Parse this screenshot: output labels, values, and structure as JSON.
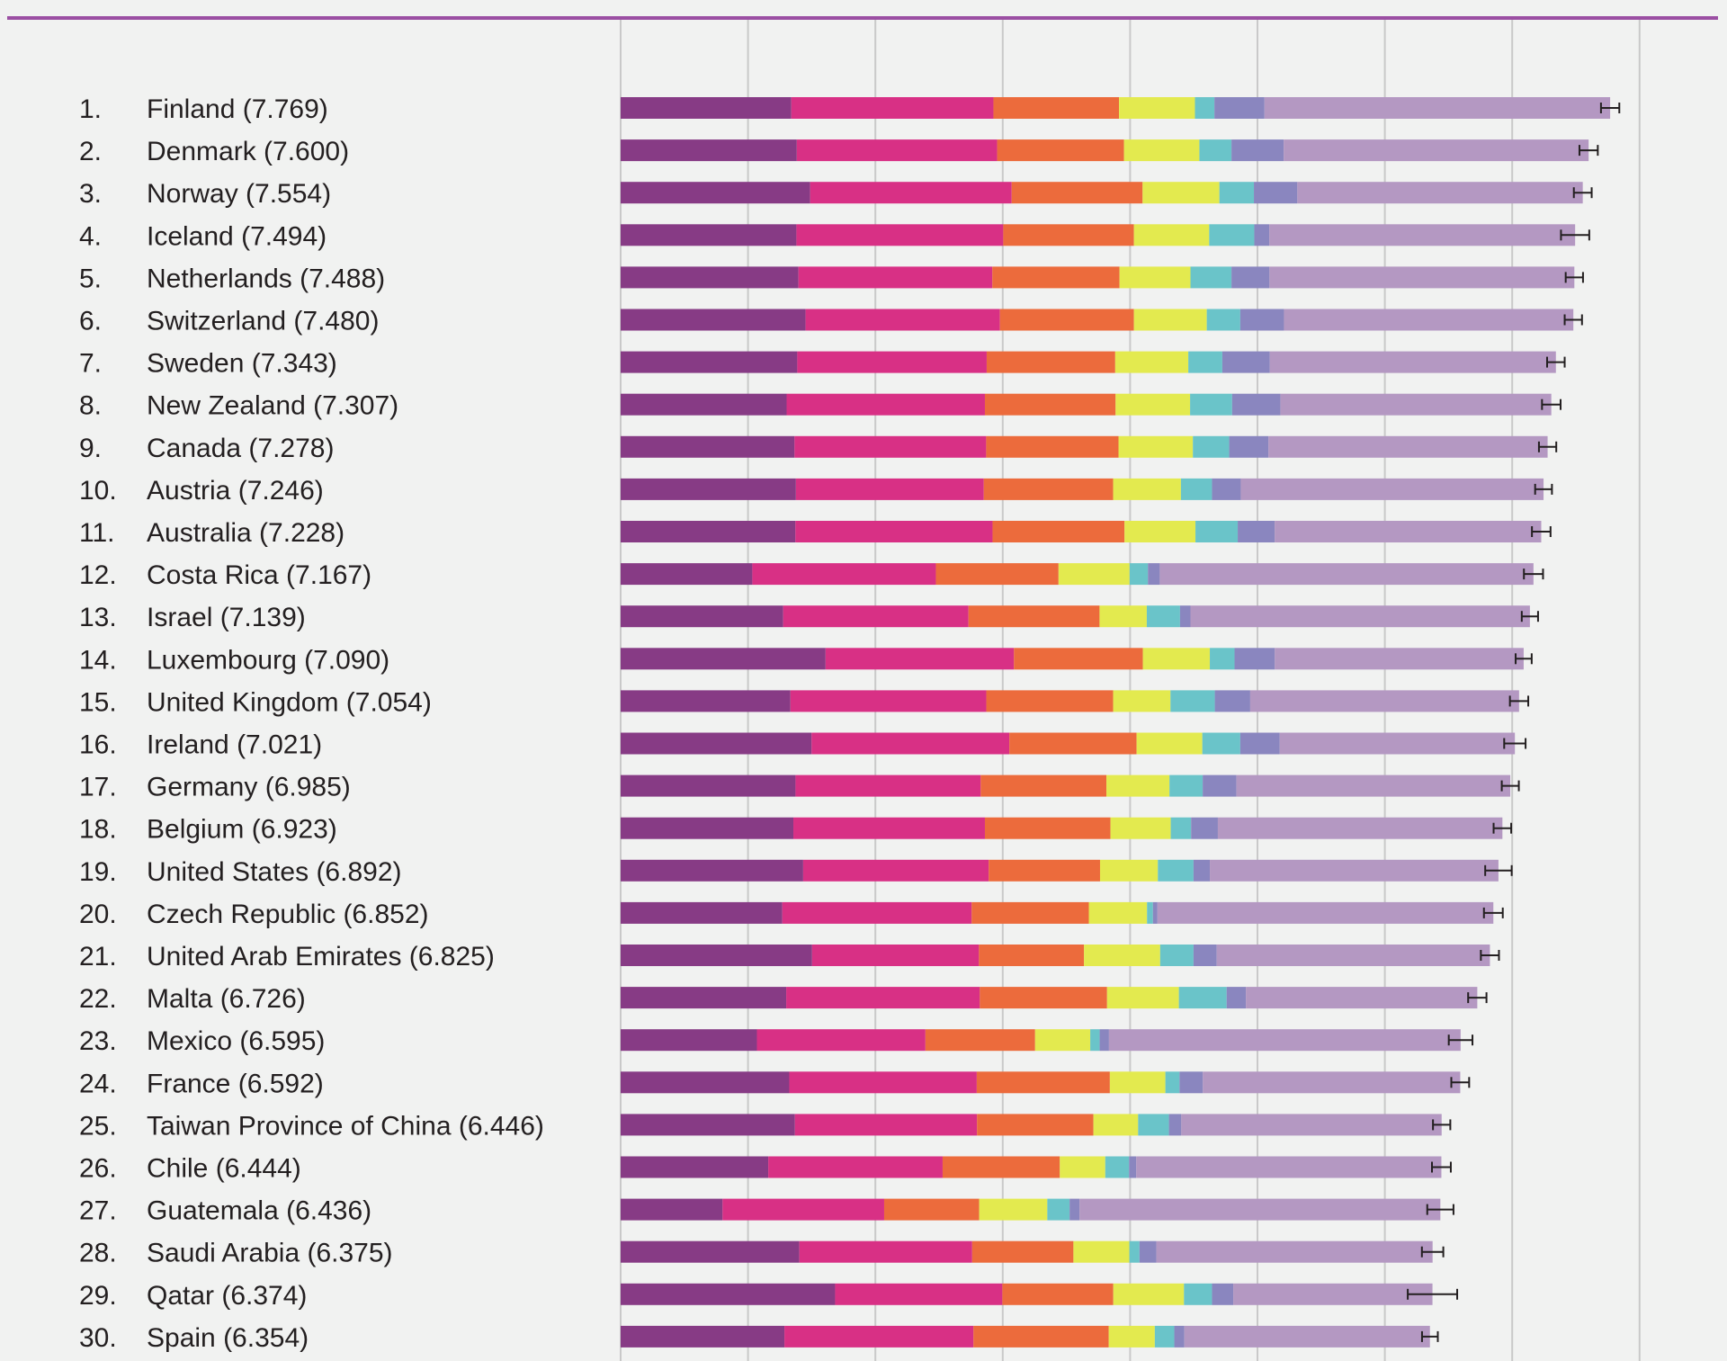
{
  "colors": {
    "background": "#f1f2f1",
    "top_rule": "#9b4fa3",
    "gridline": "#c9c9c9",
    "text": "#231f20",
    "error_bar": "#231f20"
  },
  "chart_data": {
    "type": "bar",
    "stacked": true,
    "orientation": "horizontal",
    "title": "",
    "xlabel": "",
    "ylabel": "",
    "xlim": [
      0,
      8
    ],
    "grid": true,
    "tick_labels_visible": false,
    "segment_colors": [
      "#873b85",
      "#d83085",
      "#ec6b3c",
      "#e3ea4f",
      "#6ac4c9",
      "#8a86bf",
      "#b498c2"
    ],
    "rows": [
      {
        "rank": "1.",
        "label": "Finland (7.769)",
        "score": 7.769,
        "segments": [
          1.34,
          1.587,
          0.986,
          0.596,
          0.153,
          0.393,
          2.714
        ],
        "ci": [
          7.697,
          7.841
        ]
      },
      {
        "rank": "2.",
        "label": "Denmark (7.600)",
        "score": 7.6,
        "segments": [
          1.383,
          1.573,
          0.996,
          0.592,
          0.252,
          0.41,
          2.394
        ],
        "ci": [
          7.528,
          7.672
        ]
      },
      {
        "rank": "3.",
        "label": "Norway (7.554)",
        "score": 7.554,
        "segments": [
          1.488,
          1.582,
          1.028,
          0.603,
          0.271,
          0.341,
          2.241
        ],
        "ci": [
          7.484,
          7.624
        ]
      },
      {
        "rank": "4.",
        "label": "Iceland (7.494)",
        "score": 7.494,
        "segments": [
          1.38,
          1.624,
          1.026,
          0.591,
          0.354,
          0.118,
          2.401
        ],
        "ci": [
          7.383,
          7.605
        ]
      },
      {
        "rank": "5.",
        "label": "Netherlands (7.488)",
        "score": 7.488,
        "segments": [
          1.396,
          1.522,
          0.999,
          0.557,
          0.322,
          0.298,
          2.394
        ],
        "ci": [
          7.42,
          7.556
        ]
      },
      {
        "rank": "6.",
        "label": "Switzerland (7.480)",
        "score": 7.48,
        "segments": [
          1.452,
          1.526,
          1.052,
          0.572,
          0.263,
          0.343,
          2.272
        ],
        "ci": [
          7.412,
          7.548
        ]
      },
      {
        "rank": "7.",
        "label": "Sweden (7.343)",
        "score": 7.343,
        "segments": [
          1.387,
          1.487,
          1.009,
          0.574,
          0.267,
          0.373,
          2.246
        ],
        "ci": [
          7.274,
          7.412
        ]
      },
      {
        "rank": "8.",
        "label": "New Zealand (7.307)",
        "score": 7.307,
        "segments": [
          1.303,
          1.557,
          1.026,
          0.585,
          0.33,
          0.38,
          2.126
        ],
        "ci": [
          7.234,
          7.38
        ]
      },
      {
        "rank": "9.",
        "label": "Canada (7.278)",
        "score": 7.278,
        "segments": [
          1.365,
          1.505,
          1.039,
          0.584,
          0.285,
          0.308,
          2.192
        ],
        "ci": [
          7.21,
          7.346
        ]
      },
      {
        "rank": "10.",
        "label": "Austria (7.246)",
        "score": 7.246,
        "segments": [
          1.376,
          1.475,
          1.016,
          0.532,
          0.244,
          0.226,
          2.377
        ],
        "ci": [
          7.18,
          7.312
        ]
      },
      {
        "rank": "11.",
        "label": "Australia (7.228)",
        "score": 7.228,
        "segments": [
          1.372,
          1.548,
          1.036,
          0.557,
          0.332,
          0.29,
          2.093
        ],
        "ci": [
          7.155,
          7.301
        ]
      },
      {
        "rank": "12.",
        "label": "Costa Rica (7.167)",
        "score": 7.167,
        "segments": [
          1.034,
          1.441,
          0.963,
          0.558,
          0.144,
          0.093,
          2.934
        ],
        "ci": [
          7.092,
          7.242
        ]
      },
      {
        "rank": "13.",
        "label": "Israel (7.139)",
        "score": 7.139,
        "segments": [
          1.276,
          1.455,
          1.029,
          0.371,
          0.261,
          0.082,
          2.665
        ],
        "ci": [
          7.075,
          7.203
        ]
      },
      {
        "rank": "14.",
        "label": "Luxembourg (7.090)",
        "score": 7.09,
        "segments": [
          1.609,
          1.479,
          1.012,
          0.526,
          0.194,
          0.316,
          1.954
        ],
        "ci": [
          7.027,
          7.153
        ]
      },
      {
        "rank": "15.",
        "label": "United Kingdom (7.054)",
        "score": 7.054,
        "segments": [
          1.333,
          1.538,
          0.996,
          0.45,
          0.348,
          0.278,
          2.111
        ],
        "ci": [
          6.982,
          7.126
        ]
      },
      {
        "rank": "16.",
        "label": "Ireland (7.021)",
        "score": 7.021,
        "segments": [
          1.499,
          1.553,
          0.999,
          0.516,
          0.298,
          0.31,
          1.846
        ],
        "ci": [
          6.937,
          7.105
        ]
      },
      {
        "rank": "17.",
        "label": "Germany (6.985)",
        "score": 6.985,
        "segments": [
          1.373,
          1.454,
          0.987,
          0.495,
          0.261,
          0.265,
          2.15
        ],
        "ci": [
          6.918,
          7.052
        ]
      },
      {
        "rank": "18.",
        "label": "Belgium (6.923)",
        "score": 6.923,
        "segments": [
          1.356,
          1.504,
          0.986,
          0.473,
          0.16,
          0.21,
          2.234
        ],
        "ci": [
          6.854,
          6.992
        ]
      },
      {
        "rank": "19.",
        "label": "United States (6.892)",
        "score": 6.892,
        "segments": [
          1.433,
          1.457,
          0.874,
          0.454,
          0.28,
          0.128,
          2.266
        ],
        "ci": [
          6.788,
          6.996
        ]
      },
      {
        "rank": "20.",
        "label": "Czech Republic (6.852)",
        "score": 6.852,
        "segments": [
          1.269,
          1.487,
          0.92,
          0.457,
          0.046,
          0.036,
          2.637
        ],
        "ci": [
          6.778,
          6.926
        ]
      },
      {
        "rank": "21.",
        "label": "United Arab Emirates (6.825)",
        "score": 6.825,
        "segments": [
          1.503,
          1.31,
          0.825,
          0.598,
          0.262,
          0.182,
          2.145
        ],
        "ci": [
          6.754,
          6.896
        ]
      },
      {
        "rank": "22.",
        "label": "Malta (6.726)",
        "score": 6.726,
        "segments": [
          1.3,
          1.52,
          0.999,
          0.564,
          0.375,
          0.151,
          1.817
        ],
        "ci": [
          6.654,
          6.798
        ]
      },
      {
        "rank": "23.",
        "label": "Mexico (6.595)",
        "score": 6.595,
        "segments": [
          1.07,
          1.323,
          0.861,
          0.433,
          0.074,
          0.073,
          2.761
        ],
        "ci": [
          6.502,
          6.688
        ]
      },
      {
        "rank": "24.",
        "label": "France (6.592)",
        "score": 6.592,
        "segments": [
          1.324,
          1.472,
          1.045,
          0.436,
          0.111,
          0.183,
          2.021
        ],
        "ci": [
          6.522,
          6.662
        ]
      },
      {
        "rank": "25.",
        "label": "Taiwan Province of China (6.446)",
        "score": 6.446,
        "segments": [
          1.368,
          1.43,
          0.914,
          0.351,
          0.242,
          0.097,
          2.044
        ],
        "ci": [
          6.378,
          6.514
        ]
      },
      {
        "rank": "26.",
        "label": "Chile (6.444)",
        "score": 6.444,
        "segments": [
          1.159,
          1.369,
          0.92,
          0.357,
          0.187,
          0.056,
          2.396
        ],
        "ci": [
          6.37,
          6.518
        ]
      },
      {
        "rank": "27.",
        "label": "Guatemala (6.436)",
        "score": 6.436,
        "segments": [
          0.8,
          1.269,
          0.746,
          0.535,
          0.175,
          0.078,
          2.833
        ],
        "ci": [
          6.333,
          6.539
        ]
      },
      {
        "rank": "28.",
        "label": "Saudi Arabia (6.375)",
        "score": 6.375,
        "segments": [
          1.403,
          1.357,
          0.795,
          0.439,
          0.08,
          0.132,
          2.169
        ],
        "ci": [
          6.291,
          6.459
        ]
      },
      {
        "rank": "29.",
        "label": "Qatar (6.374)",
        "score": 6.374,
        "segments": [
          1.684,
          1.313,
          0.871,
          0.555,
          0.22,
          0.167,
          1.564
        ],
        "ci": [
          6.18,
          6.568
        ]
      },
      {
        "rank": "30.",
        "label": "Spain (6.354)",
        "score": 6.354,
        "segments": [
          1.286,
          1.484,
          1.062,
          0.362,
          0.153,
          0.079,
          1.928
        ],
        "ci": [
          6.292,
          6.416
        ]
      }
    ]
  }
}
